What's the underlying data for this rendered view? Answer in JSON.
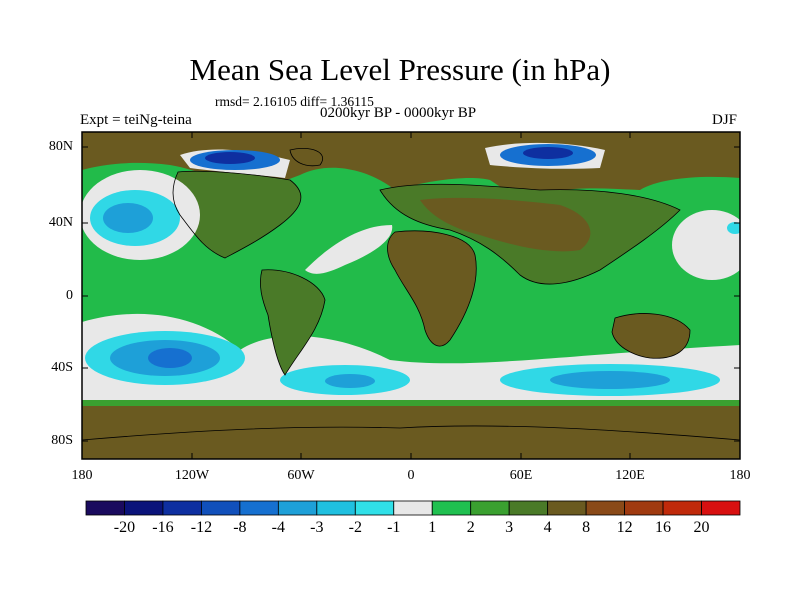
{
  "title": "Mean Sea Level Pressure (in hPa)",
  "stats": "rmsd= 2.16105 diff= 1.36115",
  "period": "0200kyr BP - 0000kyr BP",
  "experiment": "Expt = teiNg-teina",
  "season": "DJF",
  "lat_labels": [
    "80N",
    "40N",
    "0",
    "40S",
    "80S"
  ],
  "lon_labels": [
    "180",
    "120W",
    "60W",
    "0",
    "60E",
    "120E",
    "180"
  ],
  "colorbar": {
    "colors": [
      "#1a0a5e",
      "#0a137a",
      "#0e2fa0",
      "#1150bb",
      "#1670d0",
      "#1ea0d8",
      "#20c0e0",
      "#30e0e8",
      "#e8e8e8",
      "#20c050",
      "#3aa030",
      "#4a7a28",
      "#6a5a20",
      "#8a4a18",
      "#a03a10",
      "#c02a0a",
      "#d81010"
    ],
    "labels": [
      "-20",
      "-16",
      "-12",
      "-8",
      "-4",
      "-3",
      "-2",
      "-1",
      "1",
      "2",
      "3",
      "4",
      "8",
      "12",
      "16",
      "20"
    ]
  }
}
